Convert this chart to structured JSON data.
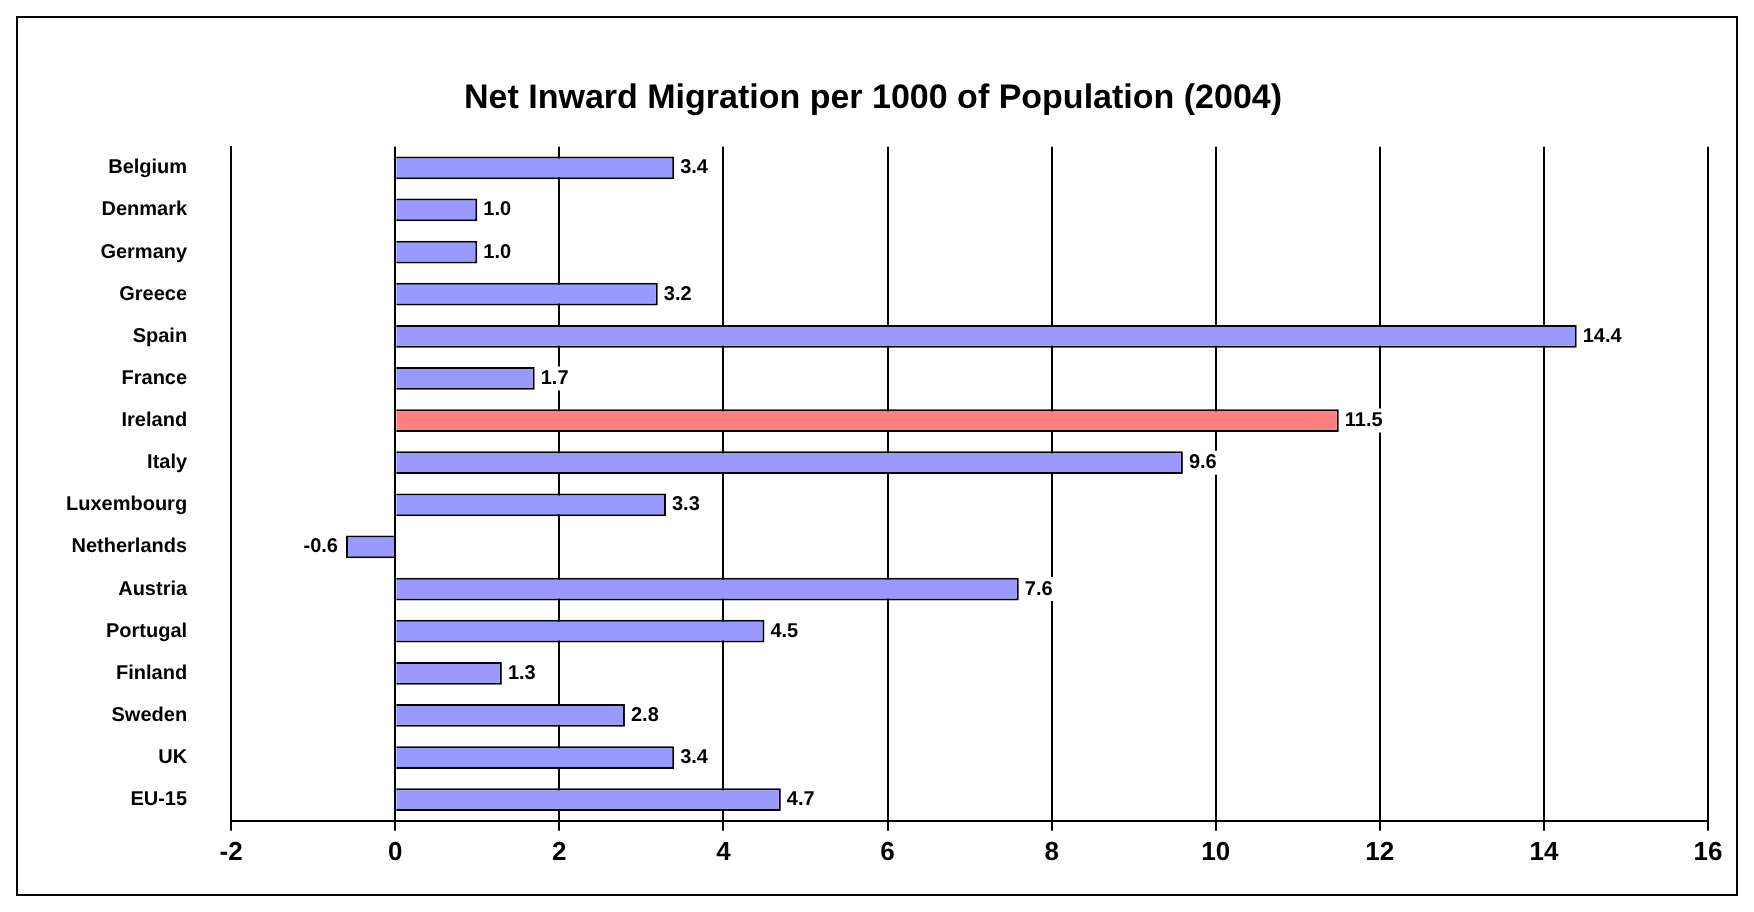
{
  "chart_data": {
    "type": "bar",
    "orientation": "horizontal",
    "title": "Net Inward Migration per 1000 of Population (2004)",
    "categories": [
      "Belgium",
      "Denmark",
      "Germany",
      "Greece",
      "Spain",
      "France",
      "Ireland",
      "Italy",
      "Luxembourg",
      "Netherlands",
      "Austria",
      "Portugal",
      "Finland",
      "Sweden",
      "UK",
      "EU-15"
    ],
    "values": [
      3.4,
      1.0,
      1.0,
      3.2,
      14.4,
      1.7,
      11.5,
      9.6,
      3.3,
      -0.6,
      7.6,
      4.5,
      1.3,
      2.8,
      3.4,
      4.7
    ],
    "colors": [
      "#9999ff",
      "#9999ff",
      "#9999ff",
      "#9999ff",
      "#9999ff",
      "#9999ff",
      "#ff8080",
      "#9999ff",
      "#9999ff",
      "#9999ff",
      "#9999ff",
      "#9999ff",
      "#9999ff",
      "#9999ff",
      "#9999ff",
      "#9999ff"
    ],
    "xlim": [
      -2,
      16
    ],
    "xticks": [
      -2,
      0,
      2,
      4,
      6,
      8,
      10,
      12,
      14,
      16
    ],
    "value_labels": [
      "3.4",
      "1.0",
      "1.0",
      "3.2",
      "14.4",
      "1.7",
      "11.5",
      "9.6",
      "3.3",
      "-0.6",
      "7.6",
      "4.5",
      "1.3",
      "2.8",
      "3.4",
      "4.7"
    ],
    "grid": "x",
    "legend": false
  }
}
